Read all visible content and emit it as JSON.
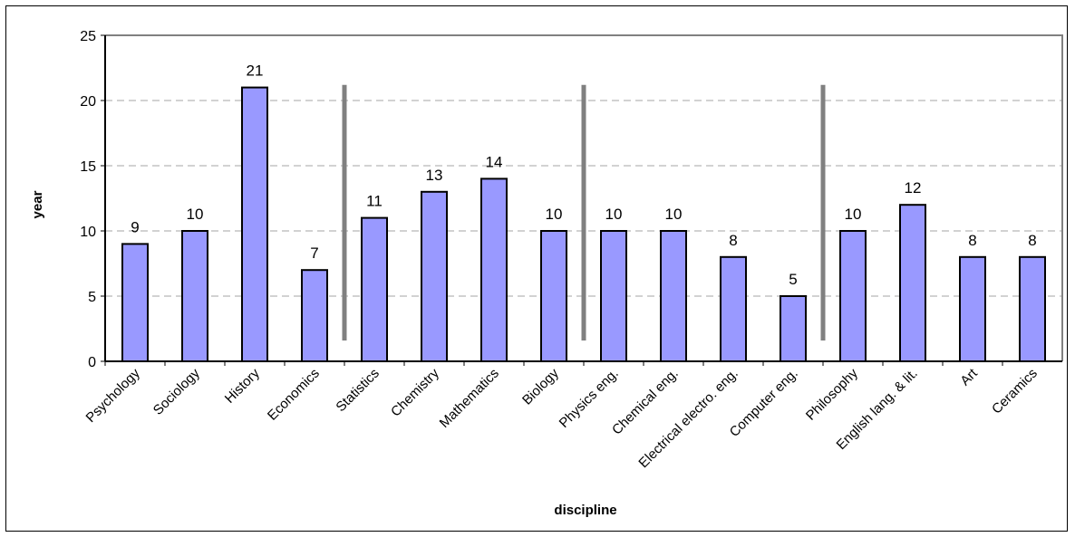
{
  "chart_data": {
    "type": "bar",
    "xlabel": "discipline",
    "ylabel": "year",
    "ylim": [
      0,
      25
    ],
    "yticks": [
      0,
      5,
      10,
      15,
      20,
      25
    ],
    "grid": true,
    "colors": {
      "bar": "#9999ff",
      "bar_edge": "#000000",
      "grid": "#b8b8b8",
      "separator": "#808080",
      "plot_border": "#808080"
    },
    "categories": [
      "Psychology",
      "Sociology",
      "History",
      "Economics",
      "Statistics",
      "Chemistry",
      "Mathematics",
      "Biology",
      "Physics eng.",
      "Chemical eng.",
      "Electrical electro. eng.",
      "Computer eng.",
      "Philosophy",
      "English lang. & lit.",
      "Art",
      "Ceramics"
    ],
    "values": [
      9,
      10,
      21,
      7,
      11,
      13,
      14,
      10,
      10,
      10,
      8,
      5,
      10,
      12,
      8,
      8
    ],
    "group_separators_after_index": [
      3,
      7,
      11
    ]
  }
}
